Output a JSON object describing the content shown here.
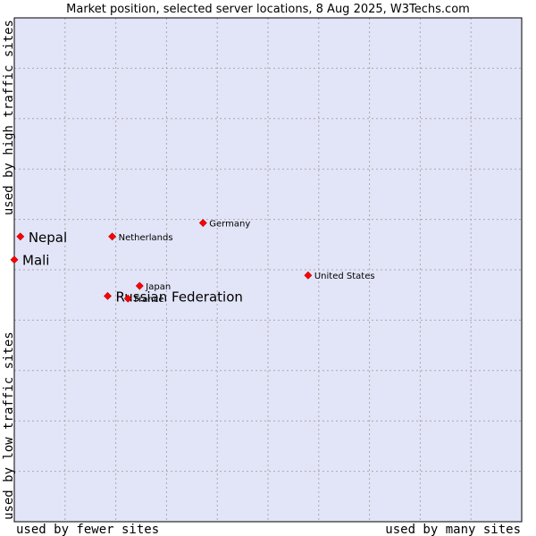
{
  "chart_data": {
    "type": "scatter",
    "title": "Market position, selected server locations, 8 Aug 2025, W3Techs.com",
    "xlabel_left": "used by fewer sites",
    "xlabel_right": "used by many sites",
    "ylabel_bottom": "used by low traffic sites",
    "ylabel_top": "used by high traffic sites",
    "xlim": [
      0,
      10
    ],
    "ylim": [
      0,
      10
    ],
    "grid": true,
    "colors": {
      "plot_background": "#e2e4f8",
      "grid": "#aaaaaa",
      "marker": "#ff0000",
      "marker_edge": "#b00000"
    },
    "points": [
      {
        "name": "Nepal",
        "x": 0.12,
        "y": 5.66,
        "emphasis": true
      },
      {
        "name": "Mali",
        "x": 0.0,
        "y": 5.2,
        "emphasis": true
      },
      {
        "name": "Russian Federation",
        "x": 1.84,
        "y": 4.48,
        "emphasis": true
      },
      {
        "name": "Netherlands",
        "x": 1.93,
        "y": 5.66,
        "emphasis": false
      },
      {
        "name": "Germany",
        "x": 3.72,
        "y": 5.93,
        "emphasis": false
      },
      {
        "name": "Japan",
        "x": 2.47,
        "y": 4.68,
        "emphasis": false
      },
      {
        "name": "France",
        "x": 2.24,
        "y": 4.43,
        "emphasis": false
      },
      {
        "name": "United States",
        "x": 5.79,
        "y": 4.89,
        "emphasis": false
      }
    ]
  }
}
